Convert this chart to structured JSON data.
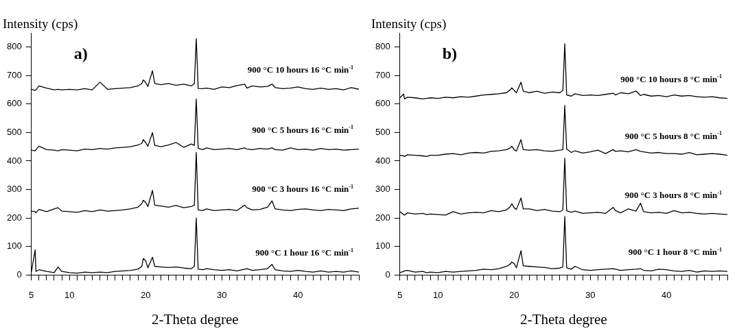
{
  "chart_data": [
    {
      "type": "line",
      "xlabel": "2-Theta degree",
      "ylabel": "Intensity (cps)",
      "annotations": [
        "a)"
      ],
      "grid": false,
      "legend": false,
      "marker": "none",
      "line_style": "solid",
      "x": [
        5,
        5.5,
        5.6,
        6,
        7,
        8,
        8.5,
        9,
        10,
        11,
        12,
        13,
        14,
        15,
        16,
        17,
        18,
        19,
        19.5,
        19.7,
        20,
        20.3,
        20.9,
        21.2,
        22,
        23,
        24,
        25,
        26,
        26.4,
        26.65,
        26.9,
        27.5,
        28,
        29,
        30,
        31,
        32,
        33,
        33.3,
        34,
        35,
        36,
        36.6,
        37,
        38,
        39,
        40,
        41,
        42,
        43,
        44,
        45,
        46,
        47,
        48
      ],
      "xlim": [
        5,
        48
      ],
      "ylim": [
        0,
        850
      ],
      "xticks": [
        5,
        {
          "value": 6,
          "label": null
        },
        {
          "value": 7,
          "label": null
        },
        {
          "value": 8,
          "label": null
        },
        {
          "value": 9,
          "label": null
        },
        10,
        {
          "value": 11,
          "label": null
        },
        {
          "value": 12,
          "label": null
        },
        {
          "value": 13,
          "label": null
        },
        {
          "value": 14,
          "label": null
        },
        {
          "value": 15,
          "label": null
        },
        {
          "value": 16,
          "label": null
        },
        {
          "value": 17,
          "label": null
        },
        {
          "value": 18,
          "label": null
        },
        {
          "value": 19,
          "label": null
        },
        20,
        {
          "value": 21,
          "label": null
        },
        {
          "value": 22,
          "label": null
        },
        {
          "value": 23,
          "label": null
        },
        {
          "value": 24,
          "label": null
        },
        {
          "value": 25,
          "label": null
        },
        {
          "value": 26,
          "label": null
        },
        {
          "value": 27,
          "label": null
        },
        {
          "value": 28,
          "label": null
        },
        {
          "value": 29,
          "label": null
        },
        30,
        {
          "value": 31,
          "label": null
        },
        {
          "value": 32,
          "label": null
        },
        {
          "value": 33,
          "label": null
        },
        {
          "value": 34,
          "label": null
        },
        {
          "value": 35,
          "label": null
        },
        {
          "value": 36,
          "label": null
        },
        {
          "value": 37,
          "label": null
        },
        {
          "value": 38,
          "label": null
        },
        {
          "value": 39,
          "label": null
        },
        40,
        {
          "value": 41,
          "label": null
        },
        {
          "value": 42,
          "label": null
        },
        {
          "value": 43,
          "label": null
        },
        {
          "value": 44,
          "label": null
        },
        {
          "value": 45,
          "label": null
        },
        {
          "value": 46,
          "label": null
        },
        {
          "value": 47,
          "label": null
        },
        {
          "value": 48,
          "label": null
        }
      ],
      "yticks": [
        0,
        100,
        200,
        300,
        400,
        500,
        600,
        700,
        800
      ],
      "series": [
        {
          "name": "900 °C 1 hour 16 °C min$^{-1}$",
          "color": "#000000",
          "values": [
            10,
            88,
            12,
            18,
            12,
            8,
            28,
            12,
            8,
            6,
            10,
            8,
            10,
            8,
            12,
            14,
            16,
            20,
            30,
            58,
            50,
            25,
            62,
            30,
            28,
            26,
            28,
            24,
            22,
            30,
            200,
            20,
            18,
            22,
            18,
            16,
            18,
            14,
            20,
            22,
            16,
            18,
            22,
            37,
            18,
            14,
            12,
            16,
            12,
            10,
            14,
            10,
            12,
            10,
            14,
            10
          ]
        },
        {
          "name": "900 °C 3 hours 16 °C min$^{-1}$",
          "color": "#000000",
          "values": [
            224,
            222,
            218,
            230,
            222,
            232,
            236,
            224,
            222,
            220,
            226,
            222,
            228,
            224,
            226,
            228,
            232,
            238,
            250,
            262,
            255,
            240,
            297,
            245,
            242,
            238,
            244,
            236,
            240,
            245,
            430,
            228,
            226,
            232,
            226,
            228,
            230,
            226,
            245,
            236,
            228,
            230,
            238,
            260,
            232,
            228,
            226,
            230,
            232,
            228,
            226,
            230,
            228,
            226,
            232,
            234
          ]
        },
        {
          "name": "900 °C 5 hours 16 °C min$^{-1}$",
          "color": "#000000",
          "values": [
            438,
            436,
            440,
            452,
            440,
            438,
            436,
            440,
            438,
            436,
            442,
            440,
            444,
            442,
            446,
            448,
            450,
            456,
            462,
            475,
            465,
            452,
            500,
            455,
            450,
            456,
            465,
            448,
            460,
            455,
            618,
            445,
            440,
            446,
            440,
            442,
            444,
            440,
            446,
            442,
            440,
            444,
            442,
            446,
            440,
            438,
            446,
            440,
            442,
            438,
            444,
            440,
            442,
            438,
            440,
            442
          ]
        },
        {
          "name": "900 °C 10 hours 16 °C min$^{-1}$",
          "color": "#000000",
          "values": [
            652,
            648,
            650,
            664,
            656,
            650,
            652,
            650,
            652,
            650,
            654,
            650,
            677,
            652,
            654,
            656,
            658,
            664,
            672,
            685,
            676,
            662,
            717,
            672,
            668,
            672,
            666,
            670,
            664,
            672,
            830,
            655,
            654,
            656,
            652,
            660,
            658,
            665,
            670,
            656,
            664,
            660,
            662,
            670,
            658,
            654,
            656,
            660,
            654,
            652,
            656,
            652,
            654,
            650,
            658,
            652
          ]
        }
      ]
    },
    {
      "type": "line",
      "xlabel": "2-Theta degree",
      "ylabel": "Intensity (cps)",
      "annotations": [
        "b)"
      ],
      "grid": false,
      "legend": false,
      "marker": "none",
      "line_style": "solid",
      "x": [
        5,
        5.5,
        5.6,
        6,
        7,
        8,
        8.5,
        9,
        10,
        11,
        12,
        13,
        14,
        15,
        16,
        17,
        18,
        19,
        19.5,
        19.7,
        20,
        20.3,
        20.9,
        21.2,
        22,
        23,
        24,
        25,
        26,
        26.4,
        26.65,
        26.9,
        27.5,
        28,
        29,
        30,
        31,
        32,
        33,
        33.3,
        34,
        35,
        36,
        36.6,
        37,
        38,
        39,
        40,
        41,
        42,
        43,
        44,
        45,
        46,
        47,
        48
      ],
      "xlim": [
        5,
        48
      ],
      "ylim": [
        0,
        850
      ],
      "xticks": [
        5,
        {
          "value": 6,
          "label": null
        },
        {
          "value": 7,
          "label": null
        },
        {
          "value": 8,
          "label": null
        },
        {
          "value": 9,
          "label": null
        },
        10,
        {
          "value": 11,
          "label": null
        },
        {
          "value": 12,
          "label": null
        },
        {
          "value": 13,
          "label": null
        },
        {
          "value": 14,
          "label": null
        },
        {
          "value": 15,
          "label": null
        },
        {
          "value": 16,
          "label": null
        },
        {
          "value": 17,
          "label": null
        },
        {
          "value": 18,
          "label": null
        },
        {
          "value": 19,
          "label": null
        },
        20,
        {
          "value": 21,
          "label": null
        },
        {
          "value": 22,
          "label": null
        },
        {
          "value": 23,
          "label": null
        },
        {
          "value": 24,
          "label": null
        },
        {
          "value": 25,
          "label": null
        },
        {
          "value": 26,
          "label": null
        },
        {
          "value": 27,
          "label": null
        },
        {
          "value": 28,
          "label": null
        },
        {
          "value": 29,
          "label": null
        },
        30,
        {
          "value": 31,
          "label": null
        },
        {
          "value": 32,
          "label": null
        },
        {
          "value": 33,
          "label": null
        },
        {
          "value": 34,
          "label": null
        },
        {
          "value": 35,
          "label": null
        },
        {
          "value": 36,
          "label": null
        },
        {
          "value": 37,
          "label": null
        },
        {
          "value": 38,
          "label": null
        },
        {
          "value": 39,
          "label": null
        },
        40,
        {
          "value": 41,
          "label": null
        },
        {
          "value": 42,
          "label": null
        },
        {
          "value": 43,
          "label": null
        },
        {
          "value": 44,
          "label": null
        },
        {
          "value": 45,
          "label": null
        },
        {
          "value": 46,
          "label": null
        },
        {
          "value": 47,
          "label": null
        },
        {
          "value": 48,
          "label": null
        }
      ],
      "yticks": [
        0,
        100,
        200,
        300,
        400,
        500,
        600,
        700,
        800
      ],
      "series": [
        {
          "name": "900 °C 1 hour 8 °C min$^{-1}$",
          "color": "#000000",
          "values": [
            8,
            12,
            14,
            16,
            10,
            12,
            8,
            10,
            8,
            12,
            10,
            12,
            14,
            16,
            20,
            18,
            22,
            30,
            38,
            45,
            40,
            25,
            85,
            32,
            30,
            28,
            26,
            22,
            24,
            28,
            205,
            25,
            20,
            30,
            18,
            16,
            18,
            20,
            22,
            20,
            16,
            18,
            20,
            22,
            16,
            14,
            20,
            18,
            14,
            12,
            16,
            10,
            14,
            12,
            14,
            12
          ]
        },
        {
          "name": "900 °C 3 hours 8 °C min$^{-1}$",
          "color": "#000000",
          "values": [
            222,
            212,
            210,
            218,
            214,
            216,
            212,
            214,
            212,
            210,
            222,
            214,
            218,
            220,
            218,
            226,
            222,
            228,
            240,
            250,
            236,
            230,
            270,
            232,
            232,
            226,
            230,
            224,
            222,
            228,
            410,
            225,
            220,
            224,
            216,
            218,
            220,
            216,
            237,
            226,
            218,
            232,
            224,
            252,
            222,
            218,
            220,
            216,
            226,
            218,
            220,
            216,
            214,
            216,
            214,
            212
          ]
        },
        {
          "name": "900 °C 5 hours 8 °C min$^{-1}$",
          "color": "#000000",
          "values": [
            420,
            418,
            416,
            422,
            420,
            418,
            416,
            420,
            420,
            424,
            426,
            422,
            428,
            430,
            428,
            434,
            436,
            440,
            446,
            452,
            440,
            435,
            475,
            440,
            438,
            440,
            436,
            434,
            438,
            440,
            595,
            442,
            430,
            436,
            428,
            432,
            438,
            426,
            440,
            434,
            436,
            432,
            440,
            434,
            432,
            428,
            430,
            426,
            426,
            424,
            430,
            422,
            424,
            426,
            424,
            420
          ]
        },
        {
          "name": "900 °C 10 hours 8 °C min$^{-1}$",
          "color": "#000000",
          "values": [
            622,
            635,
            618,
            624,
            622,
            618,
            620,
            622,
            620,
            624,
            622,
            626,
            624,
            628,
            632,
            634,
            636,
            640,
            650,
            657,
            648,
            640,
            677,
            645,
            640,
            645,
            638,
            642,
            640,
            648,
            812,
            632,
            628,
            636,
            630,
            632,
            630,
            634,
            638,
            632,
            640,
            636,
            646,
            630,
            634,
            628,
            630,
            626,
            632,
            628,
            630,
            626,
            624,
            626,
            622,
            620
          ]
        }
      ]
    }
  ]
}
